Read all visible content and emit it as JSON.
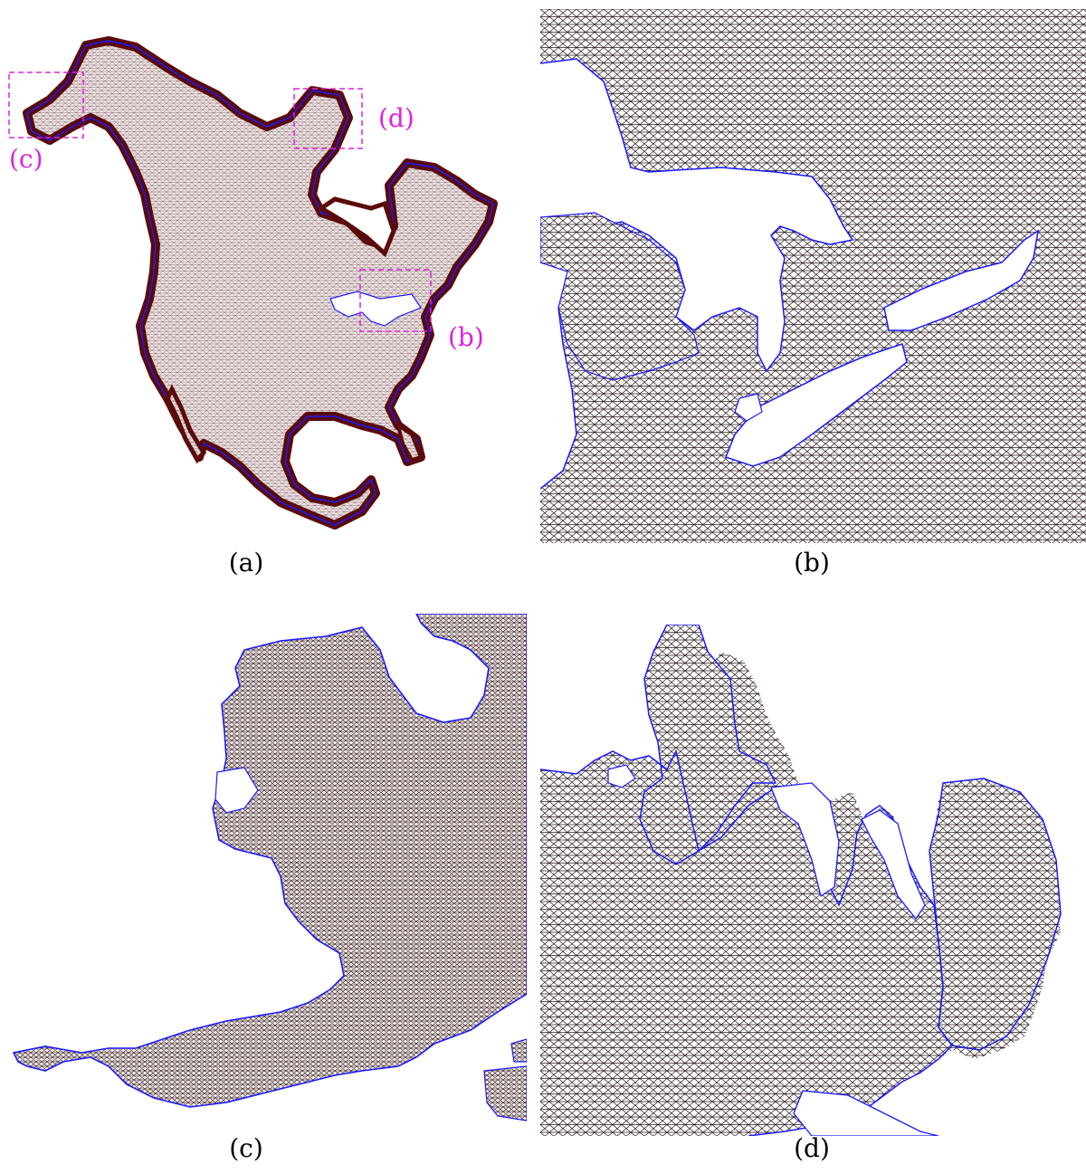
{
  "figure": {
    "panels": [
      {
        "id": "a",
        "caption": "(a)"
      },
      {
        "id": "b",
        "caption": "(b)"
      },
      {
        "id": "c",
        "caption": "(c)"
      },
      {
        "id": "d",
        "caption": "(d)"
      }
    ],
    "callouts": [
      {
        "id": "b",
        "label": "(b)"
      },
      {
        "id": "c",
        "label": "(c)"
      },
      {
        "id": "d",
        "label": "(d)"
      }
    ],
    "colors": {
      "coastline": "#1a1aff",
      "mesh_edges": "#2a1010",
      "dense_mesh": "#5a0a0a",
      "land_fill": "#e8dada",
      "callout": "#e020e0"
    }
  }
}
